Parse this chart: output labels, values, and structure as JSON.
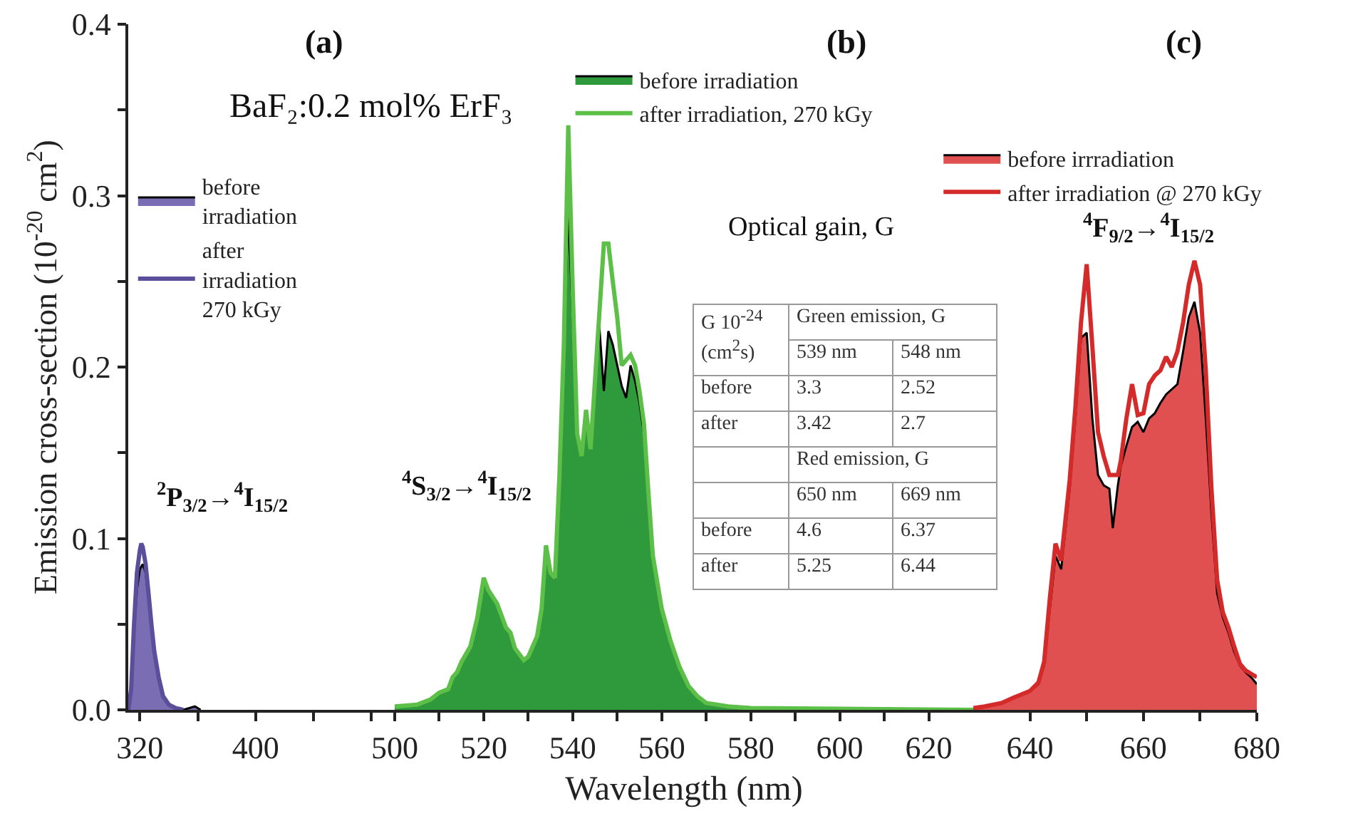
{
  "chart_data": [
    {
      "type": "area",
      "title": "(a)",
      "ylabel": "Emission cross-section (10$^{-20}$ cm$^{2}$)",
      "xlim": [
        312,
        496
      ],
      "xticks": [
        320,
        {
          "value": 360,
          "label": null
        },
        400,
        {
          "value": 440,
          "label": null
        },
        {
          "value": 480,
          "label": null
        }
      ],
      "ylim": [
        0,
        0.4
      ],
      "yticks": [
        {
          "value": 0,
          "label": "0.0"
        },
        {
          "value": 0.05,
          "label": null
        },
        0.1,
        {
          "value": 0.15,
          "label": null
        },
        0.2,
        {
          "value": 0.25,
          "label": null
        },
        0.3,
        {
          "value": 0.35,
          "label": null
        },
        0.4
      ],
      "legend": "top left",
      "annotations": [
        "BaF₂:0.2 mol% ErF₃",
        "$^{2}$P$_{3/2}$→$^{4}$I$_{15/2}$"
      ],
      "series": [
        {
          "name": "before irradiation",
          "type": "area",
          "color": "#7a6db3",
          "x": [
            312,
            314,
            316,
            318,
            320,
            322,
            324,
            326,
            328,
            330,
            333,
            336,
            340,
            345,
            350,
            358,
            362
          ],
          "values": [
            0,
            0.01,
            0.045,
            0.07,
            0.082,
            0.085,
            0.08,
            0.065,
            0.048,
            0.032,
            0.018,
            0.008,
            0.003,
            0.001,
            0,
            0.002,
            0
          ]
        },
        {
          "name": "after irradiation 270 kGy",
          "type": "line",
          "color": "#5b4f9c",
          "x": [
            312,
            314,
            316,
            318,
            320,
            321,
            322,
            324,
            326,
            328,
            330,
            333,
            336,
            340,
            345,
            350
          ],
          "values": [
            0,
            0.012,
            0.05,
            0.08,
            0.093,
            0.097,
            0.095,
            0.085,
            0.068,
            0.05,
            0.034,
            0.019,
            0.008,
            0.003,
            0.001,
            0
          ]
        }
      ]
    },
    {
      "type": "area",
      "title": "(b)",
      "xlabel": "Wavelength (nm)",
      "tick_labels": "x",
      "xlim": [
        500,
        630
      ],
      "xticks": [
        500,
        {
          "value": 510,
          "label": null
        },
        520,
        {
          "value": 530,
          "label": null
        },
        540,
        {
          "value": 550,
          "label": null
        },
        560,
        {
          "value": 570,
          "label": null
        },
        580,
        {
          "value": 590,
          "label": null
        },
        600,
        {
          "value": 610,
          "label": null
        },
        620
      ],
      "ylim": [
        0,
        0.4
      ],
      "legend": "top",
      "annotations": [
        "$^{4}$S$_{3/2}$→$^{4}$I$_{15/2}$",
        "Optical gain, G",
        "G 10$^{-24}$ (cm$^{2}$s)",
        "Green emission, G",
        "539 nm",
        "548 nm",
        "before",
        "3.3",
        "2.52",
        "after",
        "3.42",
        "2.7",
        "Red emission, G",
        "650 nm",
        "669 nm",
        "before",
        "4.6",
        "6.37",
        "after",
        "5.25",
        "6.44"
      ],
      "x": [
        500,
        505,
        508,
        510,
        512,
        513,
        514,
        515,
        517,
        518.5,
        520,
        521,
        523,
        525,
        526,
        527,
        529,
        530,
        531,
        532,
        533,
        534,
        535,
        536,
        537,
        538,
        539,
        540,
        541,
        542,
        543,
        544,
        545,
        546,
        547,
        548,
        549,
        550,
        551,
        552,
        553,
        554,
        555,
        556,
        557,
        558,
        560,
        562,
        564,
        566,
        568,
        570,
        575,
        580,
        630
      ],
      "series": [
        {
          "name": "before irradiation",
          "type": "area",
          "color": "#2f9a3b",
          "values": [
            0.002,
            0.003,
            0.006,
            0.01,
            0.012,
            0.019,
            0.022,
            0.028,
            0.037,
            0.053,
            0.074,
            0.07,
            0.062,
            0.048,
            0.045,
            0.036,
            0.029,
            0.031,
            0.037,
            0.043,
            0.059,
            0.096,
            0.08,
            0.077,
            0.136,
            0.213,
            0.291,
            0.229,
            0.161,
            0.148,
            0.175,
            0.152,
            0.192,
            0.223,
            0.186,
            0.221,
            0.213,
            0.201,
            0.189,
            0.182,
            0.201,
            0.192,
            0.179,
            0.161,
            0.121,
            0.087,
            0.059,
            0.04,
            0.025,
            0.014,
            0.008,
            0.004,
            0.002,
            0.001,
            0
          ]
        },
        {
          "name": "after irradiation, 270 kGy",
          "type": "line",
          "color": "#5cbf48",
          "values": [
            0.002,
            0.003,
            0.006,
            0.01,
            0.012,
            0.019,
            0.022,
            0.028,
            0.037,
            0.053,
            0.077,
            0.07,
            0.062,
            0.048,
            0.045,
            0.036,
            0.029,
            0.031,
            0.037,
            0.043,
            0.059,
            0.096,
            0.08,
            0.077,
            0.136,
            0.213,
            0.341,
            0.245,
            0.161,
            0.148,
            0.175,
            0.152,
            0.192,
            0.232,
            0.272,
            0.272,
            0.25,
            0.229,
            0.201,
            0.204,
            0.207,
            0.201,
            0.186,
            0.167,
            0.127,
            0.09,
            0.059,
            0.04,
            0.025,
            0.014,
            0.008,
            0.004,
            0.002,
            0.001,
            0
          ]
        }
      ]
    },
    {
      "type": "area",
      "title": "(c)",
      "tick_labels": "x",
      "xlim": [
        630,
        680
      ],
      "xticks": [
        640,
        {
          "value": 650,
          "label": null
        },
        660,
        {
          "value": 670,
          "label": null
        },
        680
      ],
      "ylim": [
        0,
        0.4
      ],
      "legend": "top right",
      "annotations": [
        "$^{4}$F$_{9/2}$→$^{4}$I$_{15/2}$"
      ],
      "x": [
        630,
        632,
        635,
        637,
        640,
        641.5,
        642.5,
        643.5,
        644.5,
        645.5,
        647,
        648,
        649,
        650,
        651,
        652,
        653,
        654,
        654.6,
        655.5,
        656,
        657,
        658,
        659,
        660,
        661,
        662,
        663,
        664,
        665,
        666,
        667,
        668,
        669,
        670,
        671,
        672,
        673,
        674,
        675,
        676,
        677,
        678,
        679,
        680
      ],
      "series": [
        {
          "name": "before irrradiation",
          "type": "area",
          "color": "#e05050",
          "values": [
            0.001,
            0.002,
            0.004,
            0.007,
            0.011,
            0.015,
            0.026,
            0.059,
            0.09,
            0.082,
            0.129,
            0.17,
            0.217,
            0.22,
            0.17,
            0.137,
            0.131,
            0.129,
            0.106,
            0.131,
            0.142,
            0.154,
            0.165,
            0.168,
            0.162,
            0.17,
            0.173,
            0.179,
            0.184,
            0.187,
            0.19,
            0.209,
            0.229,
            0.238,
            0.22,
            0.17,
            0.115,
            0.068,
            0.054,
            0.045,
            0.034,
            0.026,
            0.022,
            0.019,
            0.015
          ]
        },
        {
          "name": "after irradiation @ 270 kGy",
          "type": "line",
          "color": "#d42a2a",
          "values": [
            0.001,
            0.002,
            0.004,
            0.007,
            0.011,
            0.016,
            0.028,
            0.065,
            0.097,
            0.087,
            0.134,
            0.176,
            0.226,
            0.26,
            0.212,
            0.162,
            0.148,
            0.137,
            0.137,
            0.137,
            0.145,
            0.17,
            0.19,
            0.172,
            0.173,
            0.19,
            0.195,
            0.198,
            0.206,
            0.2,
            0.209,
            0.226,
            0.248,
            0.262,
            0.248,
            0.198,
            0.129,
            0.076,
            0.057,
            0.048,
            0.037,
            0.027,
            0.023,
            0.021,
            0.019
          ]
        }
      ]
    }
  ]
}
